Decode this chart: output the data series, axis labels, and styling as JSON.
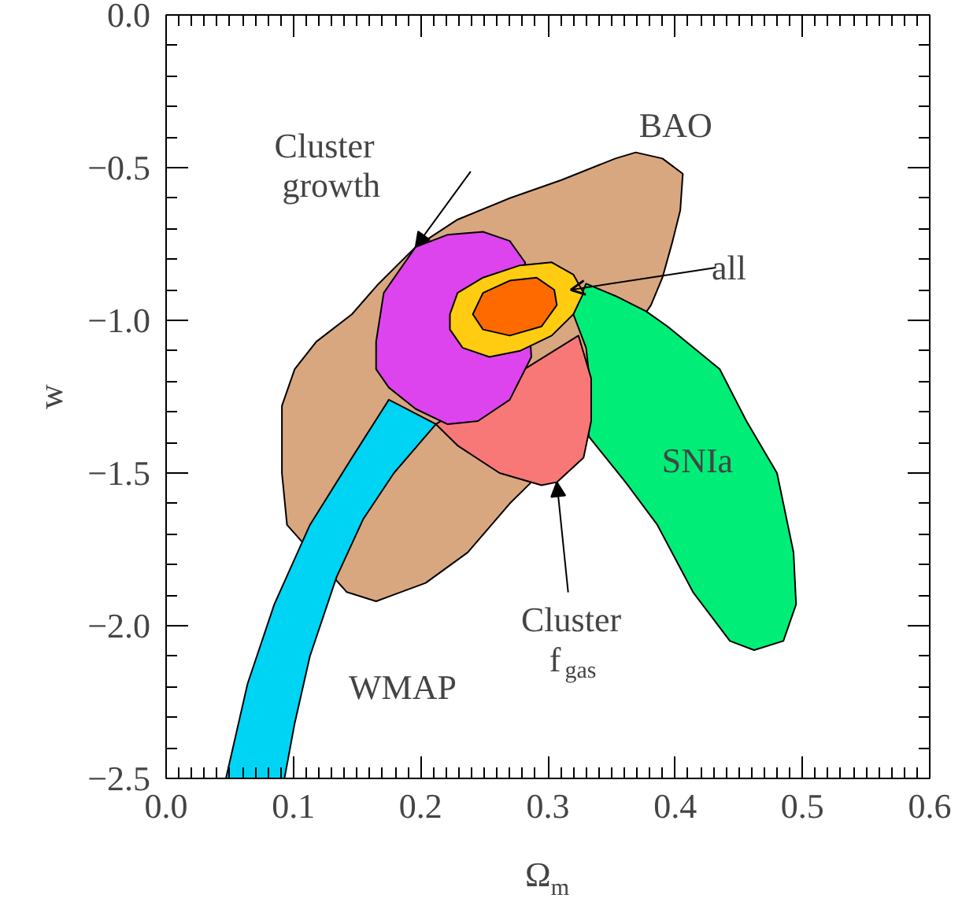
{
  "chart_data": {
    "type": "area",
    "xlabel": "Ω$_{m}$",
    "ylabel": "w",
    "xlim": [
      0.0,
      0.6
    ],
    "ylim": [
      -2.5,
      0.0
    ],
    "xticks": [
      {
        "value": 0.0,
        "label": "0.0"
      },
      0.1,
      0.2,
      0.3,
      0.4,
      0.5,
      0.6
    ],
    "yticks": [
      {
        "value": -2.5,
        "label": "−2.5"
      },
      {
        "value": -2.0,
        "label": "−2.0"
      },
      {
        "value": -1.5,
        "label": "−1.5"
      },
      {
        "value": -1.0,
        "label": "−1.0"
      },
      {
        "value": -0.5,
        "label": "−0.5"
      },
      {
        "value": 0.0,
        "label": "0.0"
      }
    ],
    "grid": false,
    "series": [
      {
        "color": "#d9a77f",
        "x": [
          0.091,
          0.101,
          0.118,
          0.146,
          0.167,
          0.196,
          0.229,
          0.27,
          0.311,
          0.353,
          0.369,
          0.39,
          0.406,
          0.404,
          0.398,
          0.39,
          0.381,
          null,
          null,
          null,
          0.287,
          0.27,
          0.237,
          0.204,
          0.165,
          0.142,
          null,
          0.095,
          0.091
        ],
        "values": [
          -1.28,
          -1.16,
          -1.07,
          -0.98,
          -0.88,
          -0.76,
          -0.67,
          -0.6,
          -0.54,
          -0.47,
          -0.45,
          -0.47,
          -0.52,
          -0.64,
          -0.74,
          -0.86,
          -0.95,
          null,
          null,
          null,
          -1.53,
          -1.6,
          -1.76,
          -1.86,
          -1.92,
          -1.89,
          null,
          -1.67,
          -1.5
        ]
      },
      {
        "color": "#00d4f5",
        "x": [
          0.047,
          0.064,
          0.085,
          0.113,
          0.146,
          0.175,
          0.212,
          0.179,
          0.155,
          0.134,
          0.113,
          0.101,
          0.093
        ],
        "values": [
          -2.5,
          -2.19,
          -1.93,
          -1.67,
          -1.45,
          -1.26,
          -1.34,
          -1.5,
          -1.65,
          -1.84,
          -2.1,
          -2.32,
          -2.5
        ]
      },
      {
        "color": "#00ee77",
        "x": [
          0.32,
          0.33,
          0.353,
          0.377,
          0.394,
          0.435,
          0.456,
          0.48,
          0.493,
          0.495,
          0.485,
          0.462,
          0.443,
          0.414,
          0.386,
          0.361,
          0.332,
          0.334,
          0.33
        ],
        "values": [
          -0.98,
          -0.88,
          -0.92,
          -0.97,
          -1.02,
          -1.16,
          -1.33,
          -1.5,
          -1.76,
          -1.93,
          -2.05,
          -2.08,
          -2.05,
          -1.89,
          -1.67,
          -1.53,
          -1.38,
          -1.24,
          -1.09
        ]
      },
      {
        "color": "#f87878",
        "x": [
          0.212,
          0.229,
          0.262,
          0.295,
          0.307,
          0.328,
          0.334,
          0.334,
          0.324,
          null,
          null,
          null,
          null,
          null
        ],
        "values": [
          -1.34,
          -1.41,
          -1.5,
          -1.54,
          -1.53,
          -1.45,
          -1.33,
          -1.19,
          -1.05,
          null,
          null,
          null,
          null,
          null
        ]
      },
      {
        "color": "#dd44ee",
        "x": [
          0.165,
          0.171,
          0.196,
          0.221,
          0.249,
          0.27,
          0.282,
          null,
          0.287,
          0.27,
          0.245,
          0.221,
          0.196,
          0.175,
          0.165
        ],
        "values": [
          -1.07,
          -0.91,
          -0.76,
          -0.72,
          -0.71,
          -0.74,
          -0.81,
          null,
          -1.12,
          -1.26,
          -1.33,
          -1.34,
          -1.29,
          -1.22,
          -1.16
        ]
      },
      {
        "color": "#ffcc11",
        "x": [
          0.223,
          0.229,
          0.249,
          0.278,
          0.303,
          0.32,
          0.328,
          0.32,
          0.303,
          0.278,
          0.254,
          0.233,
          0.223
        ],
        "values": [
          -0.98,
          -0.91,
          -0.86,
          -0.82,
          -0.81,
          -0.85,
          -0.91,
          -0.98,
          -1.05,
          -1.1,
          -1.12,
          -1.09,
          -1.03
        ]
      },
      {
        "color": "#ff6a00",
        "x": [
          0.241,
          0.249,
          0.27,
          0.291,
          0.305,
          0.307,
          0.295,
          0.27,
          0.249
        ],
        "values": [
          -0.98,
          -0.91,
          -0.87,
          -0.86,
          -0.9,
          -0.95,
          -1.02,
          -1.05,
          -1.03
        ]
      }
    ],
    "annotations": [
      "BAO",
      {
        "text": "Cluster\ngrowth",
        "x": 0.196,
        "y": -0.76
      },
      "all",
      "SNIa",
      {
        "text": "Cluster\nf$_{gas}$",
        "x": 0.307,
        "y": -1.53
      },
      "WMAP"
    ]
  }
}
